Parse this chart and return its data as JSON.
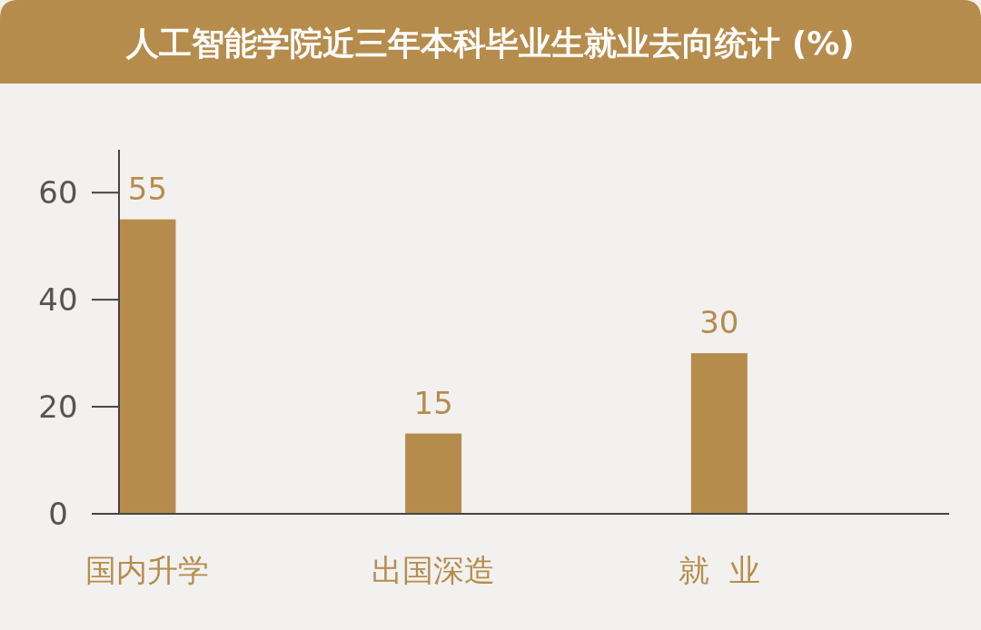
{
  "chart_data": {
    "type": "bar",
    "title": "人工智能学院近三年本科毕业生就业去向统计 (%)",
    "categories": [
      "国内升学",
      "出国深造",
      "就  业"
    ],
    "values": [
      55,
      15,
      30
    ],
    "color": "#b68c4c",
    "ylim": [
      0,
      68
    ],
    "yticks": [
      0,
      20,
      40,
      60
    ],
    "grid": false,
    "data_labels": true
  }
}
